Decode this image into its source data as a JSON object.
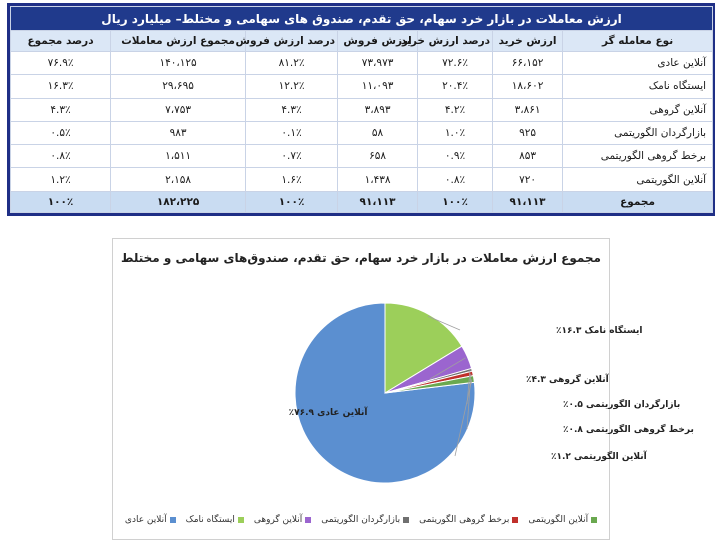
{
  "table": {
    "title": "ارزش معاملات در بازار خرد سهام، حق تقدم، صندوق های سهامی و مختلط– میلیارد ریال",
    "headers": [
      "نوع معامله گر",
      "ارزش خرید",
      "درصد ارزش خرید",
      "ارزش فروش",
      "درصد ارزش فروش",
      "مجموع ارزش معاملات",
      "درصد مجموع"
    ],
    "rows": [
      [
        "آنلاین عادی",
        "۶۶،۱۵۲",
        "۷۲.۶٪",
        "۷۳،۹۷۳",
        "۸۱.۲٪",
        "۱۴۰،۱۲۵",
        "۷۶.۹٪"
      ],
      [
        "ایستگاه نامک",
        "۱۸،۶۰۲",
        "۲۰.۴٪",
        "۱۱،۰۹۳",
        "۱۲.۲٪",
        "۲۹،۶۹۵",
        "۱۶.۳٪"
      ],
      [
        "آنلاین گروهی",
        "۳،۸۶۱",
        "۴.۲٪",
        "۳،۸۹۳",
        "۴.۳٪",
        "۷،۷۵۳",
        "۴.۳٪"
      ],
      [
        "بازارگردان الگوریتمی",
        "۹۲۵",
        "۱.۰٪",
        "۵۸",
        "۰.۱٪",
        "۹۸۳",
        "۰.۵٪"
      ],
      [
        "برخط گروهی الگوریتمی",
        "۸۵۳",
        "۰.۹٪",
        "۶۵۸",
        "۰.۷٪",
        "۱،۵۱۱",
        "۰.۸٪"
      ],
      [
        "آنلاین الگوریتمی",
        "۷۲۰",
        "۰.۸٪",
        "۱،۴۳۸",
        "۱.۶٪",
        "۲،۱۵۸",
        "۱.۲٪"
      ]
    ],
    "total": [
      "مجموع",
      "۹۱،۱۱۳",
      "۱۰۰٪",
      "۹۱،۱۱۳",
      "۱۰۰٪",
      "۱۸۲،۲۲۵",
      "۱۰۰٪"
    ]
  },
  "chart_data": {
    "type": "pie",
    "title": "مجموع ارزش معاملات در بازار خرد سهام، حق تقدم، صندوق‌های سهامی و مختلط",
    "categories": [
      "آنلاین عادی",
      "ایستگاه نامک",
      "آنلاین گروهی",
      "بازارگردان الگوریتمی",
      "برخط گروهی الگوریتمی",
      "آنلاین الگوریتمی"
    ],
    "values": [
      76.9,
      16.3,
      4.3,
      0.5,
      0.8,
      1.2
    ],
    "data_labels": [
      "آنلاین عادی ۷۶.۹٪",
      "ایستگاه نامک ۱۶.۳٪",
      "آنلاین گروهی ۴.۳٪",
      "بازارگردان الگوریتمی ۰.۵٪",
      "برخط گروهی الگوریتمی ۰.۸٪",
      "آنلاین الگوریتمی ۱.۲٪"
    ],
    "colors": [
      "#5b8fd0",
      "#9ccf5a",
      "#9b65cf",
      "#707070",
      "#c0302b",
      "#6aa84f"
    ],
    "legend_position": "bottom"
  }
}
